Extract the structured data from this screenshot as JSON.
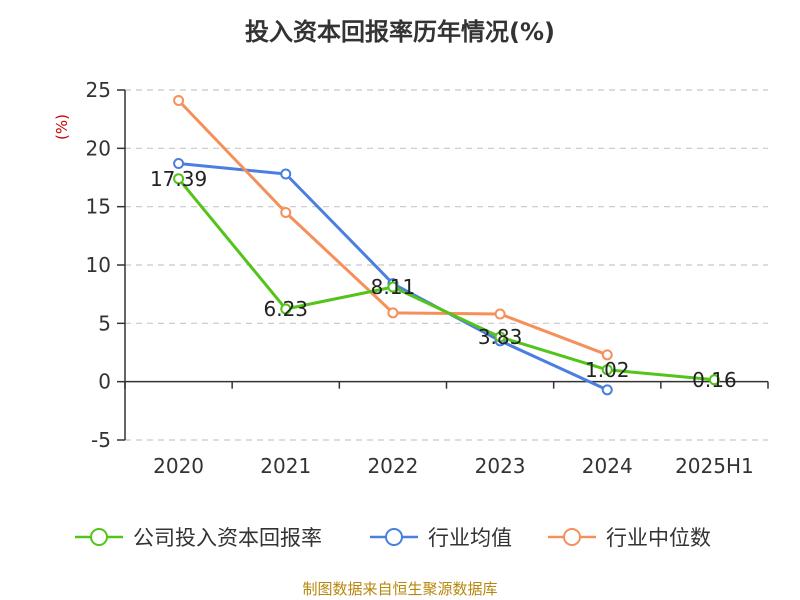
{
  "chart_data": {
    "type": "line",
    "title": "投入资本回报率历年情况(%)",
    "ylabel": "(%)",
    "categories": [
      "2020",
      "2021",
      "2022",
      "2023",
      "2024",
      "2025H1"
    ],
    "ylim": [
      -5,
      25
    ],
    "yticks": [
      -5,
      0,
      5,
      10,
      15,
      20,
      25
    ],
    "grid": true,
    "legend_position": "bottom",
    "series": [
      {
        "name": "公司投入资本回报率",
        "color": "#52c41a",
        "values": [
          17.39,
          6.23,
          8.11,
          3.83,
          1.02,
          0.16
        ],
        "labels": [
          "17.39",
          "6.23",
          "8.11",
          "3.83",
          "1.02",
          "0.16"
        ]
      },
      {
        "name": "行业均值",
        "color": "#4a7fe0",
        "values": [
          18.7,
          17.8,
          8.4,
          3.5,
          -0.7,
          null
        ]
      },
      {
        "name": "行业中位数",
        "color": "#f5905a",
        "values": [
          24.1,
          14.5,
          5.9,
          5.8,
          2.3,
          null
        ]
      }
    ]
  },
  "source_text": "制图数据来自恒生聚源数据库"
}
